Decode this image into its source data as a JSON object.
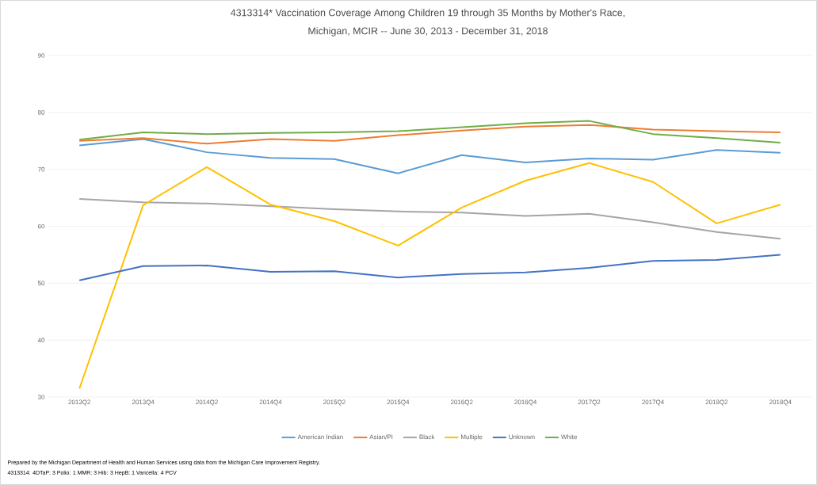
{
  "chart_data": {
    "type": "line",
    "title": "4313314* Vaccination Coverage Among Children 19 through 35 Months by Mother's Race,",
    "subtitle": "Michigan, MCIR  -- June 30, 2013  - December 31, 2018",
    "categories": [
      "2013Q2",
      "2013Q4",
      "2014Q2",
      "2014Q4",
      "2015Q2",
      "2015Q4",
      "2016Q2",
      "2016Q4",
      "2017Q2",
      "2017Q4",
      "2018Q2",
      "2018Q4"
    ],
    "series": [
      {
        "name": "American Indian",
        "color": "#5b9bd5",
        "values": [
          74.2,
          75.3,
          73.0,
          72.0,
          71.8,
          69.3,
          72.5,
          71.2,
          71.9,
          71.7,
          73.4,
          72.9
        ]
      },
      {
        "name": "Asian/PI",
        "color": "#ed7d31",
        "values": [
          75.0,
          75.5,
          74.5,
          75.3,
          75.0,
          76.0,
          76.8,
          77.5,
          77.8,
          77.0,
          76.7,
          76.5
        ]
      },
      {
        "name": "Black",
        "color": "#a5a5a5",
        "values": [
          64.8,
          64.2,
          64.0,
          63.5,
          63.0,
          62.6,
          62.4,
          61.8,
          62.2,
          60.7,
          59.0,
          57.8
        ]
      },
      {
        "name": "Multiple",
        "color": "#ffc000",
        "values": [
          31.5,
          63.7,
          70.4,
          63.8,
          60.9,
          56.6,
          63.3,
          68.0,
          71.1,
          67.8,
          60.5,
          63.8
        ]
      },
      {
        "name": "Unknown",
        "color": "#4472c4",
        "values": [
          50.5,
          53.0,
          53.1,
          52.0,
          52.1,
          51.0,
          51.6,
          51.9,
          52.7,
          53.9,
          54.1,
          55.0
        ]
      },
      {
        "name": "White",
        "color": "#70ad47",
        "values": [
          75.2,
          76.5,
          76.2,
          76.4,
          76.5,
          76.7,
          77.4,
          78.1,
          78.5,
          76.2,
          75.5,
          74.7
        ]
      }
    ],
    "ylim": [
      30,
      90
    ],
    "yticks": [
      30,
      40,
      50,
      60,
      70,
      80,
      90
    ],
    "grid": "y",
    "legend": "bottom",
    "marker": "none",
    "line_style": "solid",
    "annotations": [
      "Prepared by the Michigan Department of Health and Human Services using data from the Michigan Care Improvement Registry.",
      "4313314: 4DTaP: 3 Polio: 1 MMR: 3 Hib: 3 HepB: 1 Varicella: 4 PCV"
    ]
  }
}
